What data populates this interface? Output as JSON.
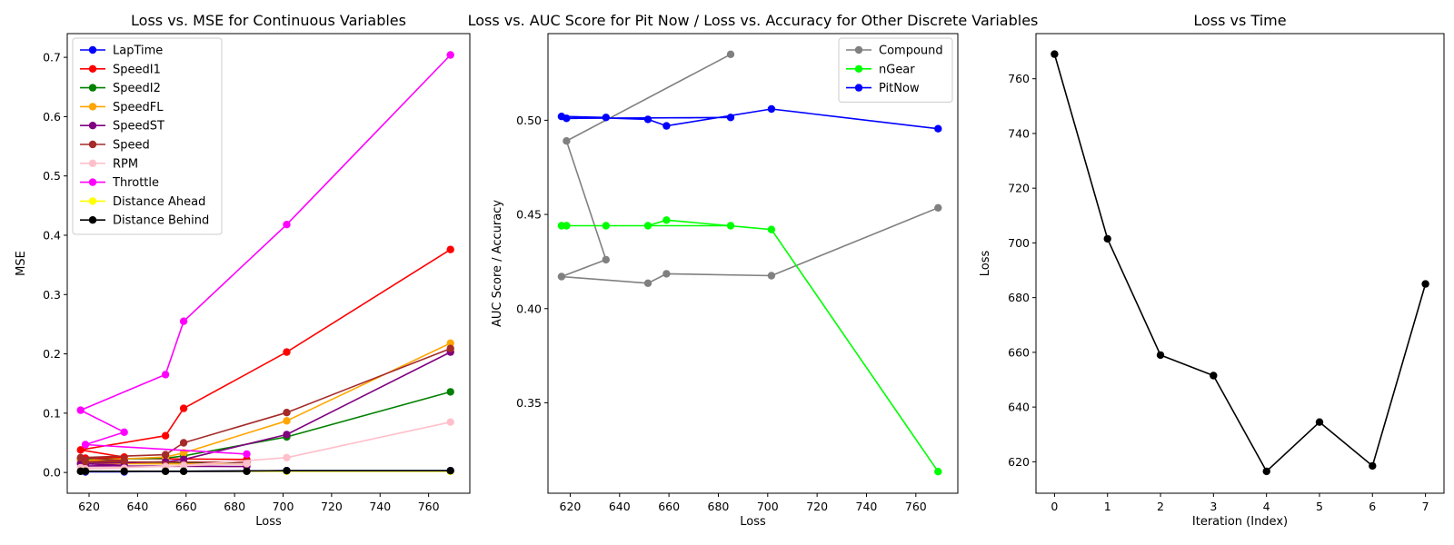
{
  "chart_data": [
    {
      "type": "line",
      "title": "Loss vs. MSE for Continuous Variables",
      "xlabel": "Loss",
      "ylabel": "MSE",
      "xlim": [
        611,
        777
      ],
      "ylim": [
        -0.035,
        0.74
      ],
      "xticks": [
        620,
        640,
        660,
        680,
        700,
        720,
        740,
        760
      ],
      "yticks": [
        0.0,
        0.1,
        0.2,
        0.3,
        0.4,
        0.5,
        0.6,
        0.7
      ],
      "x": [
        769,
        701.5,
        659,
        651.5,
        616.5,
        634.5,
        618.5,
        685
      ],
      "legend": "top-left",
      "series": [
        {
          "name": "LapTime",
          "color": "#0000ff",
          "values": [
            0.003,
            0.003,
            0.002,
            0.002,
            0.002,
            0.001,
            0.001,
            0.002
          ]
        },
        {
          "name": "SpeedI1",
          "color": "#ff0000",
          "values": [
            0.376,
            0.203,
            0.108,
            0.062,
            0.038,
            0.026,
            0.024,
            0.022
          ]
        },
        {
          "name": "SpeedI2",
          "color": "#008000",
          "values": [
            0.136,
            0.06,
            0.028,
            0.024,
            0.022,
            0.02,
            0.018,
            0.016
          ]
        },
        {
          "name": "SpeedFL",
          "color": "#ffa500",
          "values": [
            0.218,
            0.087,
            0.033,
            0.026,
            0.02,
            0.016,
            0.015,
            0.014
          ]
        },
        {
          "name": "SpeedST",
          "color": "#800080",
          "values": [
            0.203,
            0.064,
            0.022,
            0.018,
            0.015,
            0.012,
            0.011,
            0.01
          ]
        },
        {
          "name": "Speed",
          "color": "#a52a2a",
          "values": [
            0.209,
            0.101,
            0.05,
            0.03,
            0.025,
            0.02,
            0.018,
            0.017
          ]
        },
        {
          "name": "RPM",
          "color": "#ffc0cb",
          "values": [
            0.085,
            0.025,
            0.012,
            0.01,
            0.008,
            0.007,
            0.006,
            0.015
          ]
        },
        {
          "name": "Throttle",
          "color": "#ff00ff",
          "values": [
            0.704,
            0.418,
            0.255,
            0.165,
            0.105,
            0.068,
            0.047,
            0.031
          ]
        },
        {
          "name": "Distance Ahead",
          "color": "#ffff00",
          "values": [
            0.002,
            0.002,
            0.002,
            0.002,
            0.002,
            0.002,
            0.002,
            0.002
          ]
        },
        {
          "name": "Distance Behind",
          "color": "#000000",
          "values": [
            0.003,
            0.003,
            0.002,
            0.002,
            0.002,
            0.002,
            0.002,
            0.002
          ]
        }
      ]
    },
    {
      "type": "line",
      "title": "Loss vs. AUC Score for Pit Now / Loss vs. Accuracy for Other Discrete Variables",
      "xlabel": "Loss",
      "ylabel": "AUC Score / Accuracy",
      "xlim": [
        611,
        777
      ],
      "ylim": [
        0.302,
        0.546
      ],
      "xticks": [
        620,
        640,
        660,
        680,
        700,
        720,
        740,
        760
      ],
      "yticks": [
        0.35,
        0.4,
        0.45,
        0.5
      ],
      "x": [
        769,
        701.5,
        659,
        651.5,
        616.5,
        634.5,
        618.5,
        685
      ],
      "legend": "top-right",
      "series": [
        {
          "name": "Compound",
          "color": "#808080",
          "values": [
            0.4535,
            0.4175,
            0.4185,
            0.4135,
            0.417,
            0.426,
            0.489,
            0.535
          ]
        },
        {
          "name": "nGear",
          "color": "#00ff00",
          "values": [
            0.3135,
            0.442,
            0.447,
            0.444,
            0.444,
            0.444,
            0.444,
            0.444
          ]
        },
        {
          "name": "PitNow",
          "color": "#0000ff",
          "values": [
            0.4955,
            0.506,
            0.497,
            0.5005,
            0.502,
            0.5015,
            0.501,
            0.5015
          ]
        }
      ]
    },
    {
      "type": "line",
      "title": "Loss vs Time",
      "xlabel": "Iteration (Index)",
      "ylabel": "Loss",
      "xlim": [
        -0.35,
        7.35
      ],
      "ylim": [
        608.5,
        776.5
      ],
      "xticks": [
        0,
        1,
        2,
        3,
        4,
        5,
        6,
        7
      ],
      "yticks": [
        620,
        640,
        660,
        680,
        700,
        720,
        740,
        760
      ],
      "x": [
        0,
        1,
        2,
        3,
        4,
        5,
        6,
        7
      ],
      "series": [
        {
          "color": "#000000",
          "values": [
            769,
            701.5,
            659,
            651.5,
            616.5,
            634.5,
            618.5,
            685
          ]
        }
      ]
    }
  ]
}
